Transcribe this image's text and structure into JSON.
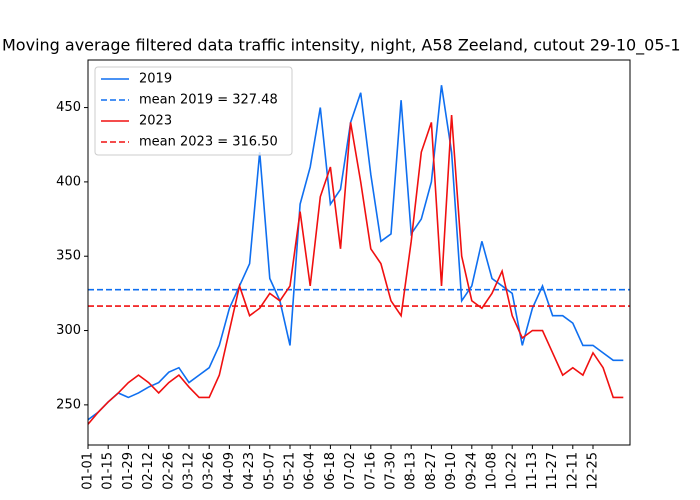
{
  "chart_data": {
    "type": "line",
    "title": "Moving average filtered data traffic intensity, night, A58 Zeeland, cutout 29-10_05-1",
    "categories": [
      "01-01",
      null,
      "01-15",
      null,
      "01-29",
      null,
      "02-12",
      null,
      "02-26",
      null,
      "03-12",
      null,
      "03-26",
      null,
      "04-09",
      null,
      "04-23",
      null,
      "05-07",
      null,
      "05-21",
      null,
      "06-04",
      null,
      "06-18",
      null,
      "07-02",
      null,
      "07-16",
      null,
      "07-30",
      null,
      "08-13",
      null,
      "08-27",
      null,
      "09-10",
      null,
      "09-24",
      null,
      "10-08",
      null,
      "10-22",
      null,
      "11-13",
      null,
      "11-27",
      null,
      "12-11",
      null,
      "12-25",
      null,
      null,
      null
    ],
    "series": [
      {
        "name": "2019",
        "color": "#0f6ff0",
        "values": [
          240,
          245,
          252,
          258,
          255,
          258,
          262,
          265,
          272,
          275,
          265,
          270,
          275,
          290,
          315,
          330,
          345,
          420,
          335,
          320,
          290,
          385,
          410,
          450,
          385,
          395,
          440,
          460,
          405,
          360,
          365,
          455,
          365,
          375,
          400,
          465,
          420,
          320,
          330,
          360,
          335,
          330,
          325,
          290,
          315,
          330,
          310,
          310,
          305,
          290,
          290,
          285,
          280,
          280
        ]
      },
      {
        "name": "mean 2019 = 327.48",
        "color": "#0f6ff0",
        "dashed": true,
        "value": 327.48
      },
      {
        "name": "2023",
        "color": "#f01010",
        "values": [
          237,
          245,
          252,
          258,
          265,
          270,
          265,
          258,
          265,
          270,
          262,
          255,
          255,
          270,
          300,
          330,
          310,
          315,
          325,
          320,
          330,
          380,
          330,
          390,
          410,
          355,
          440,
          400,
          355,
          345,
          320,
          310,
          360,
          420,
          440,
          330,
          445,
          350,
          320,
          315,
          325,
          340,
          310,
          295,
          300,
          300,
          285,
          270,
          275,
          270,
          285,
          275,
          255,
          255
        ]
      },
      {
        "name": "mean 2023 = 316.50",
        "color": "#f01010",
        "dashed": true,
        "value": 316.5
      }
    ],
    "ylim": [
      223,
      482
    ],
    "yticks": [
      250,
      300,
      350,
      400,
      450
    ],
    "legend": "upper left"
  }
}
